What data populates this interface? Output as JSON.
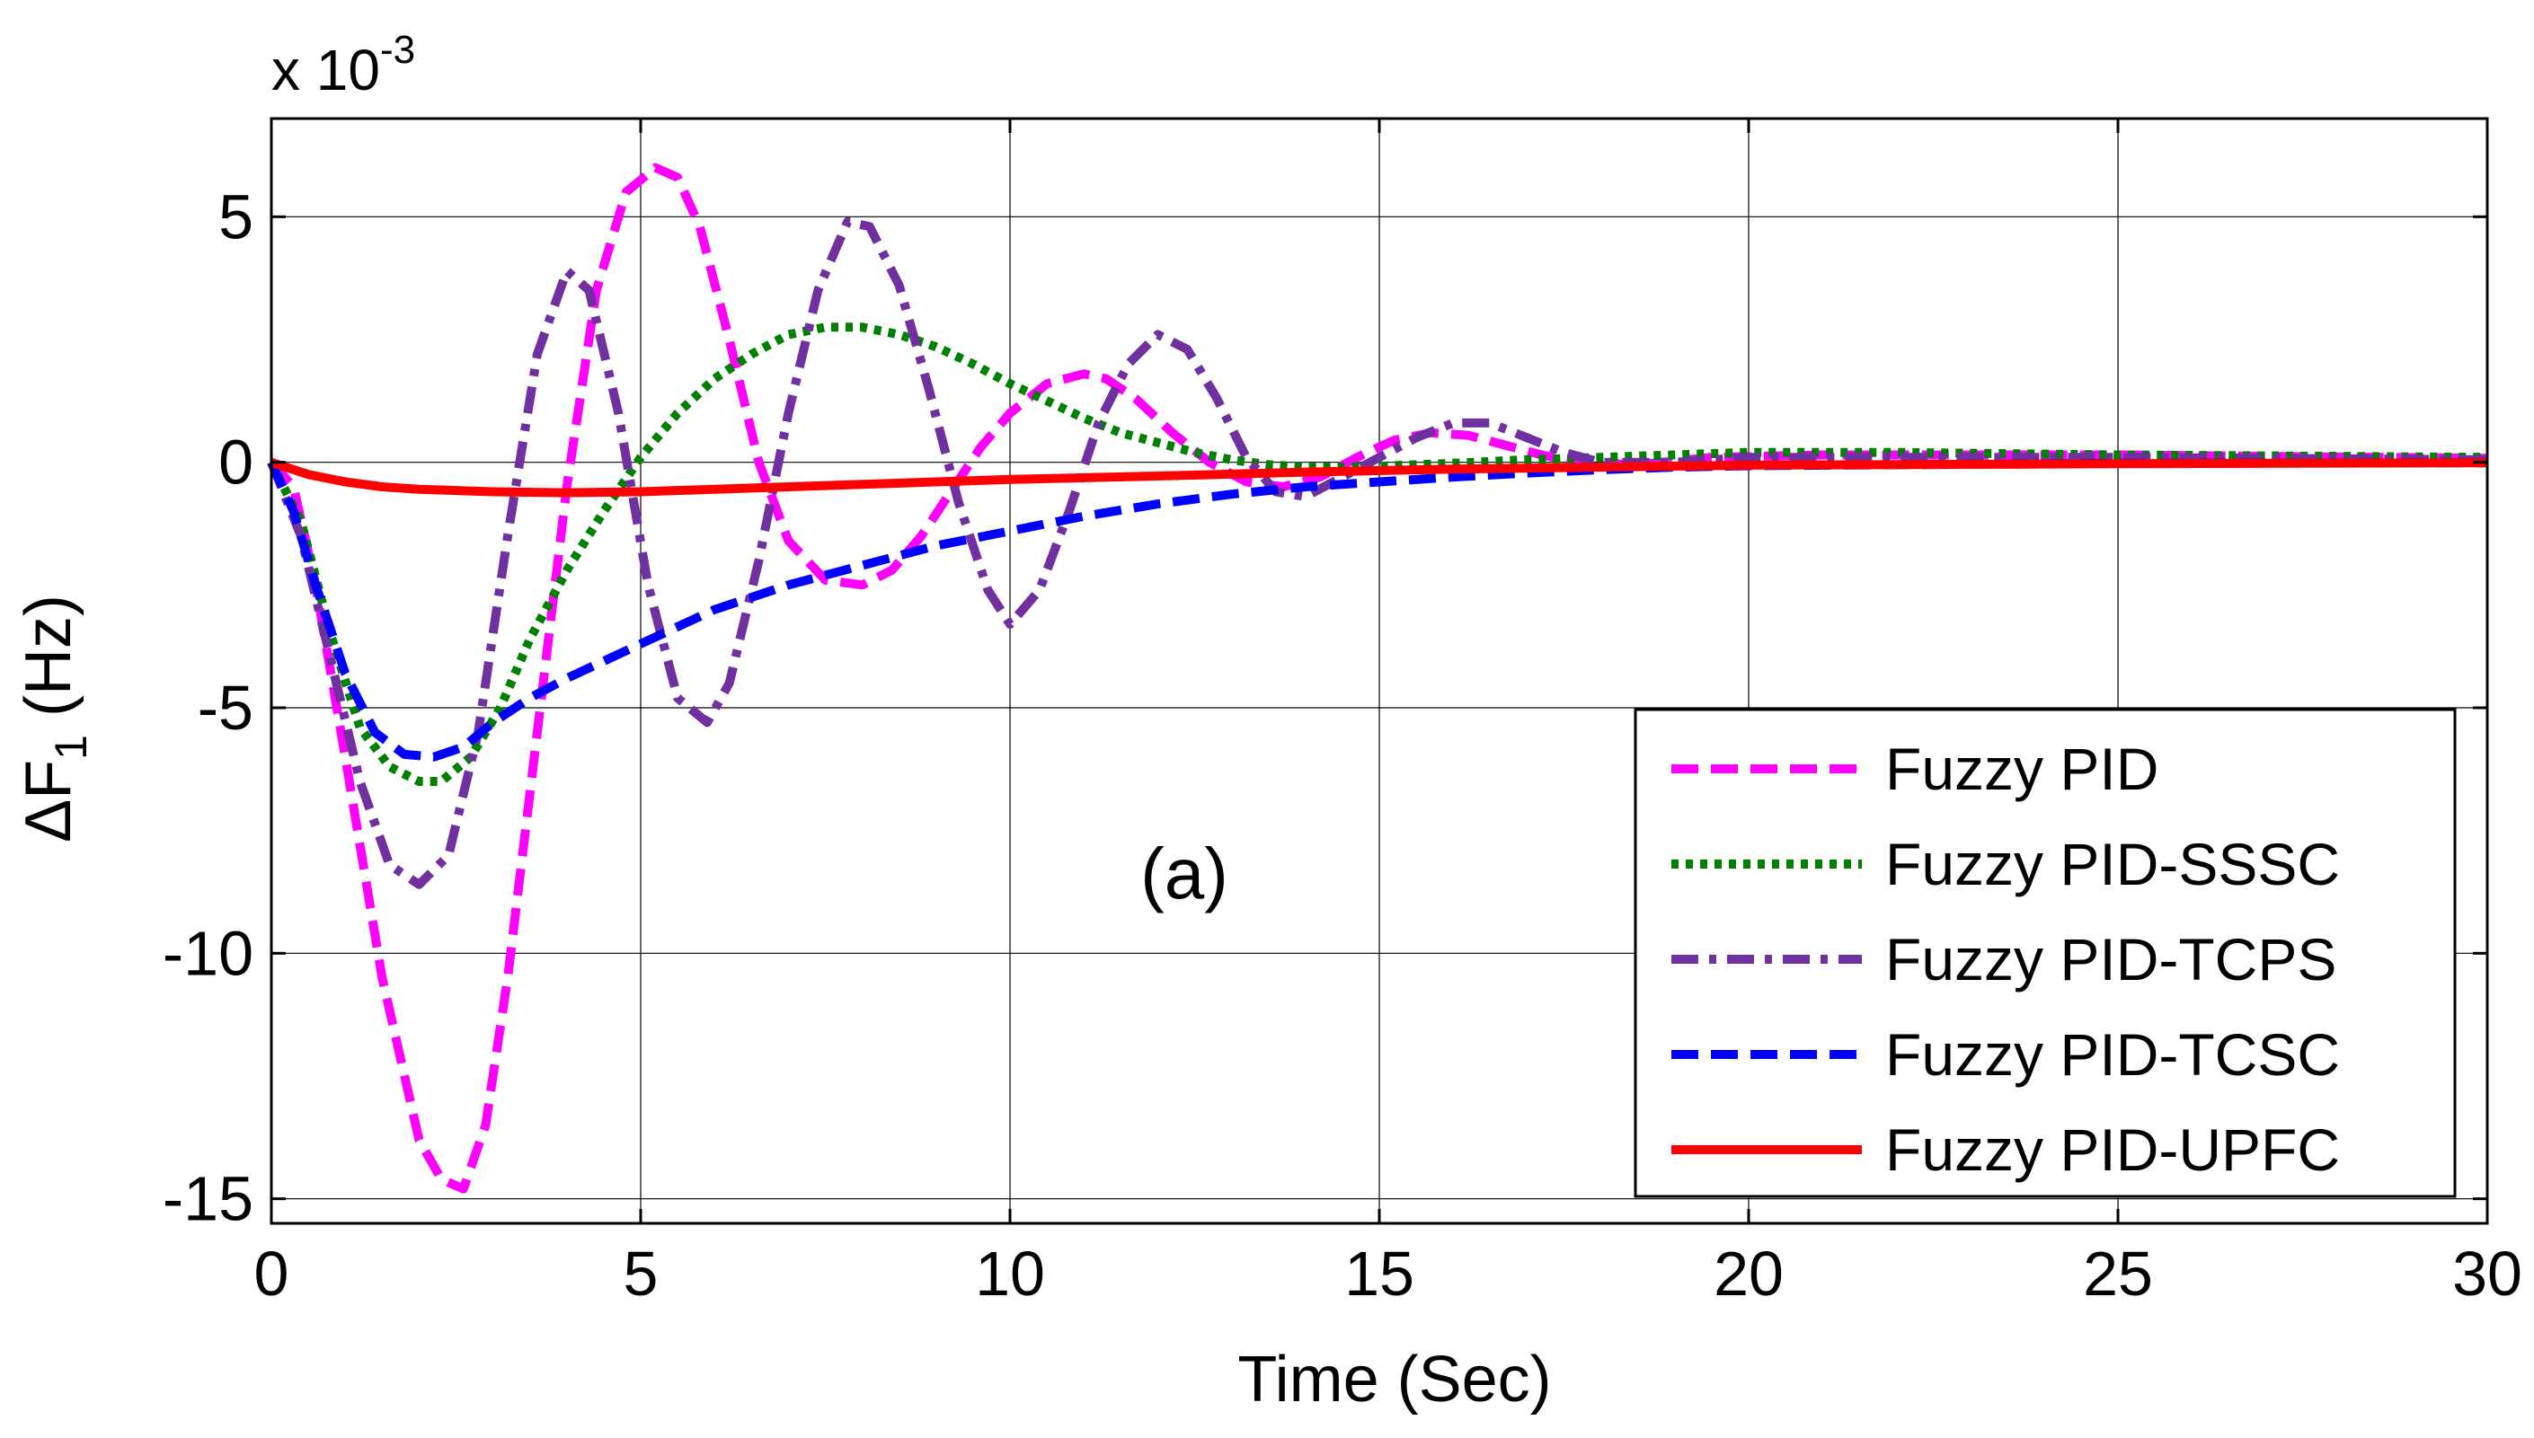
{
  "chart_data": {
    "type": "line",
    "title": "",
    "annotation": "(a)",
    "xlabel": "Time (Sec)",
    "ylabel_prefix": "ΔF",
    "ylabel_subscript": "1",
    "ylabel_suffix": " (Hz)",
    "exponent_label_base": "x 10",
    "exponent_label_power": "-3",
    "xlim": [
      0,
      30
    ],
    "ylim": [
      -15.5,
      7
    ],
    "xticks": [
      0,
      5,
      10,
      15,
      20,
      25,
      30
    ],
    "yticks": [
      5,
      0,
      -5,
      -10,
      -15
    ],
    "ytick_labels": [
      "5",
      "0",
      "-5",
      "-10",
      "-15"
    ],
    "grid": true,
    "legend_position": "bottom-right",
    "series": [
      {
        "name": "Fuzzy PID",
        "color": "#ff00ff",
        "style": "dashed",
        "x": [
          0,
          0.3,
          0.6,
          1.0,
          1.5,
          2.0,
          2.3,
          2.6,
          2.9,
          3.2,
          3.6,
          4.0,
          4.4,
          4.8,
          5.2,
          5.5,
          5.8,
          6.2,
          6.6,
          7.0,
          7.5,
          8.0,
          8.4,
          8.8,
          9.2,
          9.6,
          10.0,
          10.5,
          11.0,
          11.3,
          11.7,
          12.2,
          12.7,
          13.2,
          13.7,
          14.2,
          14.7,
          15.2,
          15.7,
          16.2,
          16.7,
          17.2,
          17.7,
          18.5,
          19.5,
          21,
          23,
          25,
          27,
          30
        ],
        "y": [
          0,
          -0.5,
          -2.5,
          -6.0,
          -10.5,
          -13.8,
          -14.6,
          -14.8,
          -13.5,
          -10.5,
          -5.5,
          -0.5,
          3.5,
          5.5,
          6.0,
          5.8,
          4.8,
          2.5,
          0.0,
          -1.6,
          -2.4,
          -2.5,
          -2.2,
          -1.5,
          -0.6,
          0.3,
          1.0,
          1.6,
          1.8,
          1.7,
          1.3,
          0.6,
          0.0,
          -0.4,
          -0.5,
          -0.3,
          0.1,
          0.45,
          0.6,
          0.55,
          0.35,
          0.15,
          0.0,
          -0.05,
          0.1,
          0.15,
          0.15,
          0.15,
          0.12,
          0.08
        ]
      },
      {
        "name": "Fuzzy PID-SSSC",
        "color": "#008000",
        "style": "dotted",
        "x": [
          0,
          0.4,
          0.8,
          1.2,
          1.6,
          2.0,
          2.3,
          2.7,
          3.1,
          3.5,
          4.0,
          4.5,
          5.0,
          5.5,
          6.0,
          6.5,
          7.0,
          7.5,
          8.0,
          8.5,
          9.0,
          9.5,
          10.0,
          10.5,
          11.0,
          11.5,
          12.0,
          12.5,
          13.0,
          13.5,
          14.0,
          14.5,
          15,
          16,
          17,
          18,
          19,
          20,
          22,
          25,
          30
        ],
        "y": [
          0,
          -1.2,
          -3.5,
          -5.4,
          -6.2,
          -6.5,
          -6.5,
          -6.0,
          -5.0,
          -3.6,
          -2.2,
          -1.0,
          0.1,
          1.0,
          1.7,
          2.2,
          2.6,
          2.75,
          2.75,
          2.6,
          2.35,
          2.0,
          1.6,
          1.25,
          0.9,
          0.6,
          0.4,
          0.2,
          0.05,
          -0.05,
          -0.1,
          -0.1,
          -0.08,
          -0.02,
          0.05,
          0.1,
          0.15,
          0.2,
          0.2,
          0.15,
          0.1
        ]
      },
      {
        "name": "Fuzzy PID-TCPS",
        "color": "#7030a0",
        "style": "dashdot",
        "x": [
          0,
          0.4,
          0.8,
          1.2,
          1.6,
          2.0,
          2.4,
          2.8,
          3.2,
          3.6,
          4.0,
          4.3,
          4.7,
          5.1,
          5.5,
          5.9,
          6.2,
          6.6,
          7.0,
          7.4,
          7.8,
          8.1,
          8.5,
          8.9,
          9.3,
          9.7,
          10.0,
          10.4,
          10.8,
          11.2,
          11.6,
          12.0,
          12.4,
          12.8,
          13.2,
          13.6,
          14.0,
          14.5,
          15.0,
          15.5,
          16.0,
          16.5,
          17.0,
          17.5,
          18,
          19,
          20,
          22,
          25,
          30
        ],
        "y": [
          0,
          -1.5,
          -4.0,
          -6.5,
          -8.2,
          -8.6,
          -8.0,
          -5.5,
          -1.5,
          2.2,
          3.9,
          3.5,
          1.0,
          -2.5,
          -4.8,
          -5.3,
          -4.5,
          -2.0,
          1.0,
          3.5,
          4.9,
          4.8,
          3.6,
          1.5,
          -0.8,
          -2.6,
          -3.3,
          -2.6,
          -1.0,
          0.8,
          2.0,
          2.6,
          2.3,
          1.3,
          0.1,
          -0.6,
          -0.7,
          -0.3,
          0.1,
          0.5,
          0.8,
          0.8,
          0.5,
          0.2,
          0.0,
          0.0,
          0.1,
          0.1,
          0.1,
          0.05
        ]
      },
      {
        "name": "Fuzzy PID-TCSC",
        "color": "#0000ff",
        "style": "dashed",
        "x": [
          0,
          0.3,
          0.6,
          1.0,
          1.4,
          1.8,
          2.2,
          2.6,
          3.0,
          3.5,
          4.0,
          5.0,
          6.0,
          7.0,
          8.0,
          9.0,
          10.0,
          11.0,
          12.0,
          13.0,
          14.0,
          15.0,
          16.0,
          17.0,
          18.0,
          19.0,
          20.0,
          22,
          25,
          30
        ],
        "y": [
          0,
          -1.0,
          -2.5,
          -4.3,
          -5.5,
          -5.95,
          -6.0,
          -5.8,
          -5.3,
          -4.8,
          -4.4,
          -3.7,
          -3.0,
          -2.5,
          -2.1,
          -1.7,
          -1.4,
          -1.1,
          -0.85,
          -0.65,
          -0.5,
          -0.4,
          -0.3,
          -0.22,
          -0.15,
          -0.1,
          -0.07,
          -0.05,
          -0.02,
          -0.01
        ]
      },
      {
        "name": "Fuzzy PID-UPFC",
        "color": "#ff0000",
        "style": "solid",
        "x": [
          0,
          0.5,
          1.0,
          1.5,
          2.0,
          3.0,
          4.0,
          5.0,
          6.0,
          7.0,
          8.0,
          9.0,
          10.0,
          12.0,
          14.0,
          16.0,
          18.0,
          20.0,
          25.0,
          30.0
        ],
        "y": [
          0,
          -0.25,
          -0.4,
          -0.5,
          -0.55,
          -0.6,
          -0.62,
          -0.6,
          -0.55,
          -0.5,
          -0.45,
          -0.4,
          -0.35,
          -0.28,
          -0.2,
          -0.14,
          -0.1,
          -0.06,
          -0.03,
          -0.01
        ]
      }
    ]
  }
}
